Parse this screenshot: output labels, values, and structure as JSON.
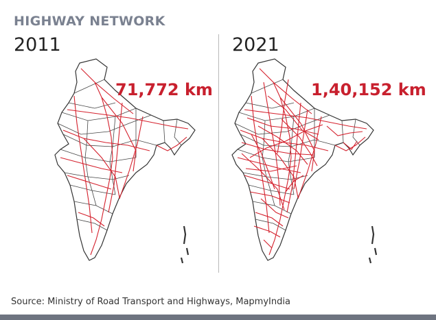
{
  "header": {
    "title": "HIGHWAY NETWORK"
  },
  "panels": [
    {
      "year": "2011",
      "length": "71,772 km",
      "road_density": "sparse"
    },
    {
      "year": "2021",
      "length": "1,40,152 km",
      "road_density": "dense"
    }
  ],
  "footer": {
    "source": "Source: Ministry of Road Transport and Highways, MapmyIndia"
  },
  "colors": {
    "title": "#7a8190",
    "highway": "#d4202c",
    "border": "#333333",
    "length_text": "#c8202e",
    "divider": "#b8b8b8",
    "bottom_bar": "#6e7480"
  }
}
